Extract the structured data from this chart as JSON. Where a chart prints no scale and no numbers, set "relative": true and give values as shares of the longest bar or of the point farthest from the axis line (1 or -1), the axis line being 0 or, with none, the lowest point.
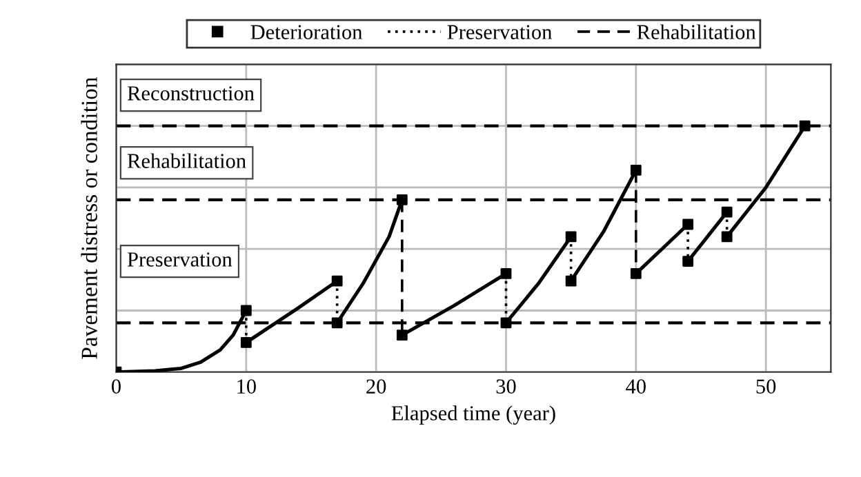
{
  "chart_data": {
    "type": "line",
    "relative": true,
    "xlabel": "Elapsed time (year)",
    "ylabel": "Pavement distress or condition",
    "xlim": [
      0,
      55
    ],
    "xticks": [
      0,
      10,
      20,
      30,
      40,
      50
    ],
    "grid": true,
    "legend": "top",
    "series": [
      {
        "name": "Deterioration",
        "type": "scatter",
        "marker": "square",
        "color": "#000000",
        "x": [
          0,
          10,
          10,
          17,
          17,
          22,
          22,
          30,
          30,
          35,
          35,
          40,
          40,
          44,
          44,
          47,
          47,
          53
        ],
        "values": [
          0,
          0.25,
          0.12,
          0.37,
          0.2,
          0.7,
          0.15,
          0.4,
          0.2,
          0.55,
          0.37,
          0.82,
          0.4,
          0.6,
          0.45,
          0.65,
          0.55,
          1.0
        ]
      },
      {
        "color": "#000000",
        "x": [
          0,
          3,
          5,
          6.5,
          8,
          9,
          10
        ],
        "values": [
          0,
          0.005,
          0.015,
          0.04,
          0.09,
          0.15,
          0.25
        ]
      },
      {
        "color": "#000000",
        "x": [
          10,
          12,
          14,
          17
        ],
        "values": [
          0.12,
          0.19,
          0.26,
          0.37
        ]
      },
      {
        "color": "#000000",
        "x": [
          17,
          19,
          21,
          22
        ],
        "values": [
          0.2,
          0.36,
          0.55,
          0.7
        ]
      },
      {
        "color": "#000000",
        "x": [
          22,
          26,
          30
        ],
        "values": [
          0.15,
          0.27,
          0.4
        ]
      },
      {
        "color": "#000000",
        "x": [
          30,
          32.5,
          35
        ],
        "values": [
          0.2,
          0.36,
          0.55
        ]
      },
      {
        "color": "#000000",
        "x": [
          35,
          37.5,
          40
        ],
        "values": [
          0.37,
          0.57,
          0.82
        ]
      },
      {
        "color": "#000000",
        "x": [
          40,
          42,
          44
        ],
        "values": [
          0.4,
          0.5,
          0.6
        ]
      },
      {
        "color": "#000000",
        "x": [
          44,
          45.5,
          47
        ],
        "values": [
          0.45,
          0.55,
          0.65
        ]
      },
      {
        "color": "#000000",
        "x": [
          47,
          50,
          53
        ],
        "values": [
          0.55,
          0.75,
          1.0
        ]
      },
      {
        "name": "Preservation",
        "line_style": "dotted",
        "color": "#000000",
        "x": [
          10,
          10
        ],
        "values": [
          0.25,
          0.12
        ]
      },
      {
        "line_style": "dotted",
        "color": "#000000",
        "x": [
          17,
          17
        ],
        "values": [
          0.37,
          0.2
        ]
      },
      {
        "line_style": "dotted",
        "color": "#000000",
        "x": [
          30,
          30
        ],
        "values": [
          0.4,
          0.2
        ]
      },
      {
        "line_style": "dotted",
        "color": "#000000",
        "x": [
          35,
          35
        ],
        "values": [
          0.55,
          0.37
        ]
      },
      {
        "line_style": "dotted",
        "color": "#000000",
        "x": [
          44,
          44
        ],
        "values": [
          0.6,
          0.45
        ]
      },
      {
        "line_style": "dotted",
        "color": "#000000",
        "x": [
          47,
          47
        ],
        "values": [
          0.65,
          0.55
        ]
      },
      {
        "name": "Rehabilitation",
        "line_style": "dashed",
        "color": "#000000",
        "x": [
          22,
          22
        ],
        "values": [
          0.7,
          0.15
        ]
      },
      {
        "line_style": "dashed",
        "color": "#000000",
        "x": [
          40,
          40
        ],
        "values": [
          0.82,
          0.4
        ]
      }
    ],
    "ref_lines": [
      {
        "axis": "y",
        "value": 0.2,
        "line_style": "dashed",
        "color": "#000000"
      },
      {
        "axis": "y",
        "value": 0.7,
        "line_style": "dashed",
        "color": "#000000"
      },
      {
        "axis": "y",
        "value": 1.0,
        "line_style": "dashed",
        "color": "#000000"
      }
    ],
    "annotations": [
      "Reconstruction",
      "Rehabilitation",
      "Preservation"
    ]
  }
}
